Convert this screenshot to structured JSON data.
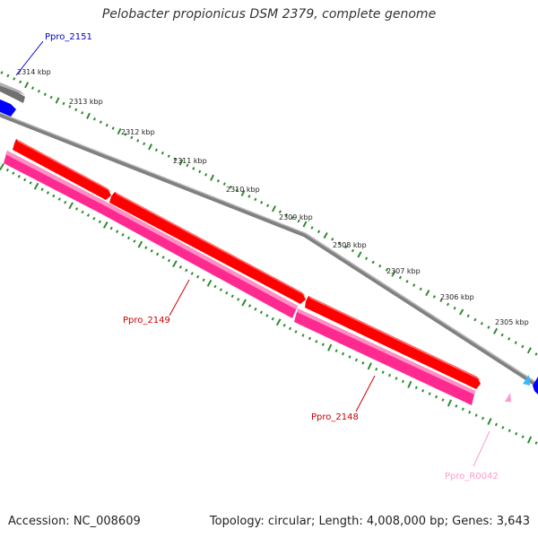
{
  "title": "Pelobacter propionicus DSM 2379, complete genome",
  "footer": {
    "accession": "Accession: NC_008609",
    "stats": "Topology: circular; Length: 4,008,000 bp; Genes: 3,643"
  },
  "scale_ticks": [
    {
      "label": "2314 kbp"
    },
    {
      "label": "2313 kbp"
    },
    {
      "label": "2312 kbp"
    },
    {
      "label": "2311 kbp"
    },
    {
      "label": "2310 kbp"
    },
    {
      "label": "2309 kbp"
    },
    {
      "label": "2308 kbp"
    },
    {
      "label": "2307 kbp"
    },
    {
      "label": "2306 kbp"
    },
    {
      "label": "2305 kbp"
    }
  ],
  "gene_labels": {
    "ppro_2151": "Ppro_2151",
    "ppro_2149": "Ppro_2149",
    "ppro_2148": "Ppro_2148",
    "ppro_r0042": "Ppro_R0042"
  },
  "colors": {
    "ruler_tick": "#2e8b2e",
    "backbone": "#808080",
    "gene_red": "#ff0000",
    "gene_pink": "#ff2a8f",
    "gene_blue": "#0000ff",
    "label_blue": "#0000cc",
    "label_red": "#cc0000",
    "label_pink": "#ff99cc",
    "cyan_marker": "#33bbff"
  }
}
